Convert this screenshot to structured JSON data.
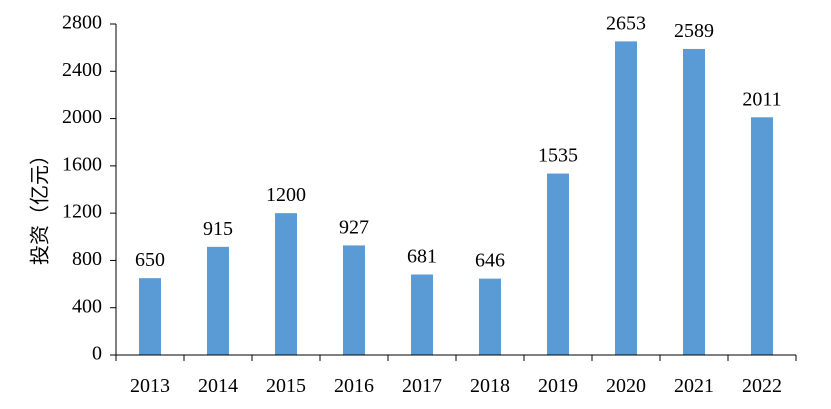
{
  "chart_data": {
    "type": "bar",
    "categories": [
      "2013",
      "2014",
      "2015",
      "2016",
      "2017",
      "2018",
      "2019",
      "2020",
      "2021",
      "2022"
    ],
    "values": [
      650,
      915,
      1200,
      927,
      681,
      646,
      1535,
      2653,
      2589,
      2011
    ],
    "data_labels": [
      "650",
      "915",
      "1200",
      "927",
      "681",
      "646",
      "1535",
      "2653",
      "2589",
      "2011"
    ],
    "title": "",
    "xlabel": "",
    "ylabel": "投资（亿元）",
    "ylim": [
      0,
      2800
    ],
    "yticks": [
      "0",
      "400",
      "800",
      "1200",
      "1600",
      "2000",
      "2400",
      "2800"
    ],
    "grid": false,
    "legend": "none",
    "bar_color": "#5b9bd5"
  }
}
